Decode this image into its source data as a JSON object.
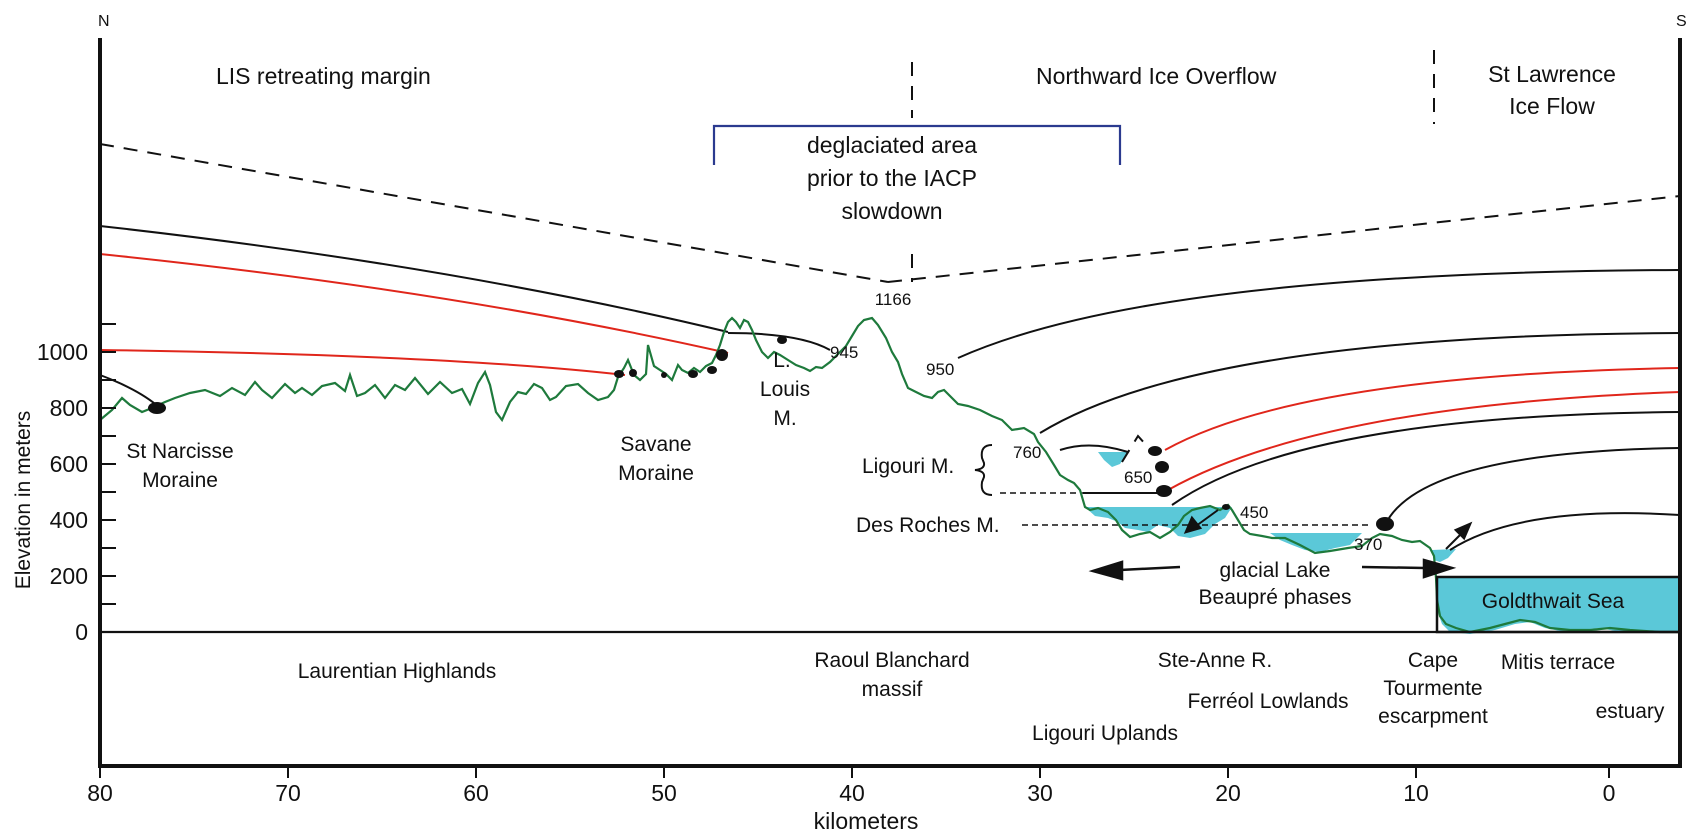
{
  "axes": {
    "x": {
      "label": "kilometers",
      "tick_labels": [
        "80",
        "70",
        "60",
        "50",
        "40",
        "30",
        "20",
        "10",
        "0"
      ],
      "range": [
        80,
        -4
      ]
    },
    "y": {
      "label": "Elevation in meters",
      "tick_labels": [
        "1000",
        "800",
        "600",
        "400",
        "200",
        "0"
      ],
      "range": [
        -460,
        2200
      ]
    }
  },
  "compass": {
    "north": "N",
    "south": "S"
  },
  "zones": {
    "lis": "LIS retreating margin",
    "northward": "Northward Ice Overflow",
    "stlawrence_line1": "St Lawrence",
    "stlawrence_line2": "Ice Flow"
  },
  "deglaciated": {
    "line1": "deglaciated area",
    "line2": "prior to the IACP",
    "line3": "slowdown"
  },
  "elevations": {
    "e1166": "1166",
    "e945": "945",
    "e950": "950",
    "e760": "760",
    "e650": "650",
    "e450": "450",
    "e370": "370"
  },
  "moraines": {
    "st_narcisse_line1": "St Narcisse",
    "st_narcisse_line2": "Moraine",
    "savane_line1": "Savane",
    "savane_line2": "Moraine",
    "louis_line1": "L.",
    "louis_line2": "Louis",
    "louis_line3": "M.",
    "ligouri": "Ligouri M.",
    "desroches": "Des Roches M."
  },
  "lake": {
    "line1": "glacial Lake",
    "line2": "Beaupré phases"
  },
  "sea": "Goldthwait Sea",
  "features": {
    "laurentian": "Laurentian Highlands",
    "raoul_line1": "Raoul Blanchard",
    "raoul_line2": "massif",
    "steanne": "Ste-Anne R.",
    "ferreol": "Ferréol Lowlands",
    "ligouri_uplands": "Ligouri Uplands",
    "cape_line1": "Cape",
    "cape_line2": "Tourmente",
    "cape_line3": "escarpment",
    "mitis": "Mitis terrace",
    "estuary": "estuary"
  },
  "colors": {
    "terrain": "#1e7a3c",
    "red_ice_line": "#e0261b",
    "black_ice_line": "#111111",
    "water": "#5bc8d8",
    "bracket": "#2b3a8f"
  }
}
